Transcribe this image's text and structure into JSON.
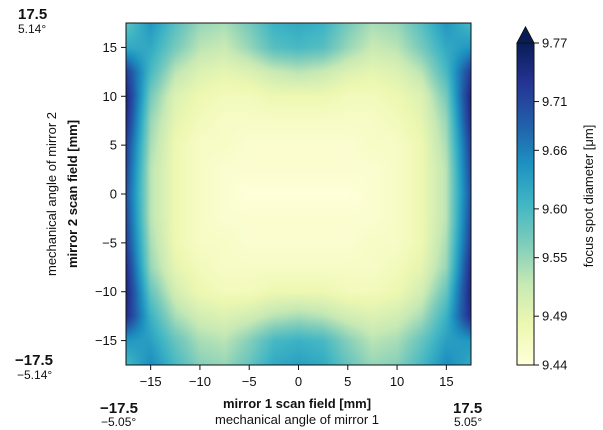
{
  "chart_data": {
    "type": "heatmap",
    "x_tick_labels": [
      "−15",
      "−10",
      "−5",
      "0",
      "5",
      "10",
      "15"
    ],
    "y_tick_labels": [
      "15",
      "10",
      "5",
      "0",
      "−5",
      "−10",
      "−15"
    ],
    "xlabel": "mirror 1 scan field [mm]",
    "xlabel_secondary": "mechanical angle of mirror 1",
    "ylabel": "mirror 2 scan field [mm]",
    "ylabel_secondary": "mechanical angle of mirror 2",
    "xlim": [
      -17.5,
      17.5
    ],
    "ylim": [
      -17.5,
      17.5
    ],
    "x_corner_labels": {
      "left_value": "−17.5",
      "left_angle": "−5.05°",
      "right_value": "17.5",
      "right_angle": "5.05°"
    },
    "y_corner_labels": {
      "top_value": "17.5",
      "top_angle": "5.14°",
      "bottom_value": "−17.5",
      "bottom_angle": "−5.14°"
    },
    "colorbar": {
      "label": "focus spot diameter [μm]",
      "min": 9.44,
      "max": 9.77,
      "extend": "max",
      "tick_values": [
        9.44,
        9.49,
        9.55,
        9.6,
        9.66,
        9.71,
        9.77
      ],
      "tick_labels": [
        "9.44",
        "9.49",
        "9.55",
        "9.60",
        "9.66",
        "9.71",
        "9.77"
      ],
      "colormap": [
        "#ffffd9",
        "#edf8b1",
        "#c7e9b4",
        "#7fcdbb",
        "#41b6c4",
        "#1d91c0",
        "#225ea8",
        "#253494",
        "#081d58"
      ]
    },
    "field_model": {
      "description": "2D field of focus spot diameter over the mirror scan field",
      "x_knots": [
        -17.5,
        -15,
        -12.5,
        -10,
        -7.5,
        -5,
        -2.5,
        0,
        2.5,
        5,
        7.5,
        10,
        12.5,
        15,
        17.5
      ],
      "y_knots": [
        17.5,
        15,
        12.5,
        10,
        7.5,
        5,
        2.5,
        0,
        -2.5,
        -5,
        -7.5,
        -10,
        -12.5,
        -15,
        -17.5
      ],
      "values": [
        [
          9.58,
          9.64,
          9.59,
          9.55,
          9.54,
          9.57,
          9.61,
          9.62,
          9.61,
          9.57,
          9.54,
          9.55,
          9.59,
          9.64,
          9.6
        ],
        [
          9.62,
          9.62,
          9.57,
          9.53,
          9.52,
          9.55,
          9.59,
          9.6,
          9.59,
          9.55,
          9.52,
          9.53,
          9.57,
          9.62,
          9.64
        ],
        [
          9.72,
          9.6,
          9.53,
          9.5,
          9.49,
          9.5,
          9.52,
          9.53,
          9.52,
          9.5,
          9.49,
          9.5,
          9.53,
          9.6,
          9.72
        ],
        [
          9.75,
          9.57,
          9.5,
          9.48,
          9.47,
          9.47,
          9.48,
          9.48,
          9.48,
          9.47,
          9.47,
          9.48,
          9.5,
          9.57,
          9.75
        ],
        [
          9.74,
          9.55,
          9.49,
          9.47,
          9.46,
          9.46,
          9.46,
          9.46,
          9.46,
          9.46,
          9.46,
          9.47,
          9.49,
          9.55,
          9.74
        ],
        [
          9.72,
          9.54,
          9.48,
          9.46,
          9.46,
          9.45,
          9.45,
          9.45,
          9.45,
          9.45,
          9.46,
          9.46,
          9.48,
          9.54,
          9.72
        ],
        [
          9.71,
          9.53,
          9.48,
          9.46,
          9.45,
          9.45,
          9.45,
          9.45,
          9.45,
          9.45,
          9.45,
          9.46,
          9.48,
          9.53,
          9.71
        ],
        [
          9.7,
          9.53,
          9.48,
          9.46,
          9.45,
          9.44,
          9.44,
          9.44,
          9.44,
          9.44,
          9.45,
          9.46,
          9.48,
          9.53,
          9.7
        ],
        [
          9.71,
          9.53,
          9.48,
          9.46,
          9.45,
          9.45,
          9.45,
          9.45,
          9.45,
          9.45,
          9.45,
          9.46,
          9.48,
          9.53,
          9.71
        ],
        [
          9.72,
          9.54,
          9.48,
          9.46,
          9.46,
          9.45,
          9.45,
          9.45,
          9.45,
          9.45,
          9.46,
          9.46,
          9.48,
          9.54,
          9.72
        ],
        [
          9.74,
          9.55,
          9.49,
          9.47,
          9.46,
          9.46,
          9.46,
          9.46,
          9.46,
          9.46,
          9.46,
          9.47,
          9.49,
          9.55,
          9.74
        ],
        [
          9.75,
          9.58,
          9.51,
          9.48,
          9.47,
          9.47,
          9.48,
          9.48,
          9.48,
          9.47,
          9.47,
          9.48,
          9.51,
          9.58,
          9.75
        ],
        [
          9.74,
          9.61,
          9.54,
          9.51,
          9.5,
          9.51,
          9.53,
          9.54,
          9.53,
          9.51,
          9.5,
          9.51,
          9.54,
          9.61,
          9.74
        ],
        [
          9.64,
          9.63,
          9.58,
          9.54,
          9.53,
          9.56,
          9.6,
          9.61,
          9.6,
          9.56,
          9.53,
          9.54,
          9.58,
          9.63,
          9.64
        ],
        [
          9.6,
          9.65,
          9.6,
          9.56,
          9.55,
          9.58,
          9.62,
          9.63,
          9.62,
          9.58,
          9.55,
          9.56,
          9.6,
          9.65,
          9.62
        ]
      ]
    }
  }
}
